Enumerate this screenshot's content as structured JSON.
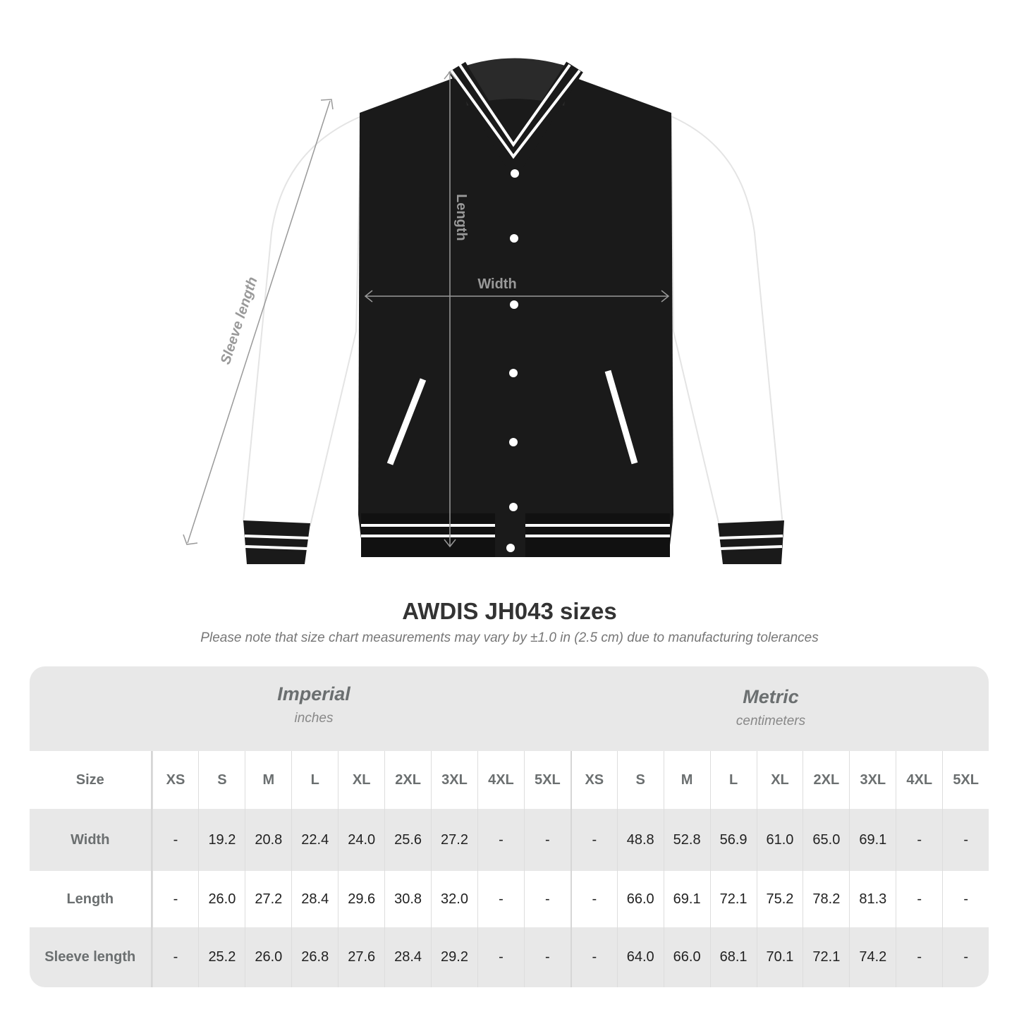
{
  "illustration": {
    "labels": {
      "length": "Length",
      "width": "Width",
      "sleeve": "Sleeve length"
    },
    "colors": {
      "body": "#1a1a1a",
      "sleeve": "#ffffff",
      "arrow": "#999999"
    }
  },
  "title": "AWDIS JH043 sizes",
  "subtitle": "Please note that size chart measurements may vary by ±1.0 in (2.5 cm) due to manufacturing tolerances",
  "table": {
    "imperial": {
      "name": "Imperial",
      "unit": "inches"
    },
    "metric": {
      "name": "Metric",
      "unit": "centimeters"
    },
    "size_label": "Size",
    "sizes": [
      "XS",
      "S",
      "M",
      "L",
      "XL",
      "2XL",
      "3XL",
      "4XL",
      "5XL"
    ],
    "rows": [
      {
        "label": "Width",
        "imperial": [
          "-",
          "19.2",
          "20.8",
          "22.4",
          "24.0",
          "25.6",
          "27.2",
          "-",
          "-"
        ],
        "metric": [
          "-",
          "48.8",
          "52.8",
          "56.9",
          "61.0",
          "65.0",
          "69.1",
          "-",
          "-"
        ]
      },
      {
        "label": "Length",
        "imperial": [
          "-",
          "26.0",
          "27.2",
          "28.4",
          "29.6",
          "30.8",
          "32.0",
          "-",
          "-"
        ],
        "metric": [
          "-",
          "66.0",
          "69.1",
          "72.1",
          "75.2",
          "78.2",
          "81.3",
          "-",
          "-"
        ]
      },
      {
        "label": "Sleeve length",
        "imperial": [
          "-",
          "25.2",
          "26.0",
          "26.8",
          "27.6",
          "28.4",
          "29.2",
          "-",
          "-"
        ],
        "metric": [
          "-",
          "64.0",
          "66.0",
          "68.1",
          "70.1",
          "72.1",
          "74.2",
          "-",
          "-"
        ]
      }
    ]
  }
}
